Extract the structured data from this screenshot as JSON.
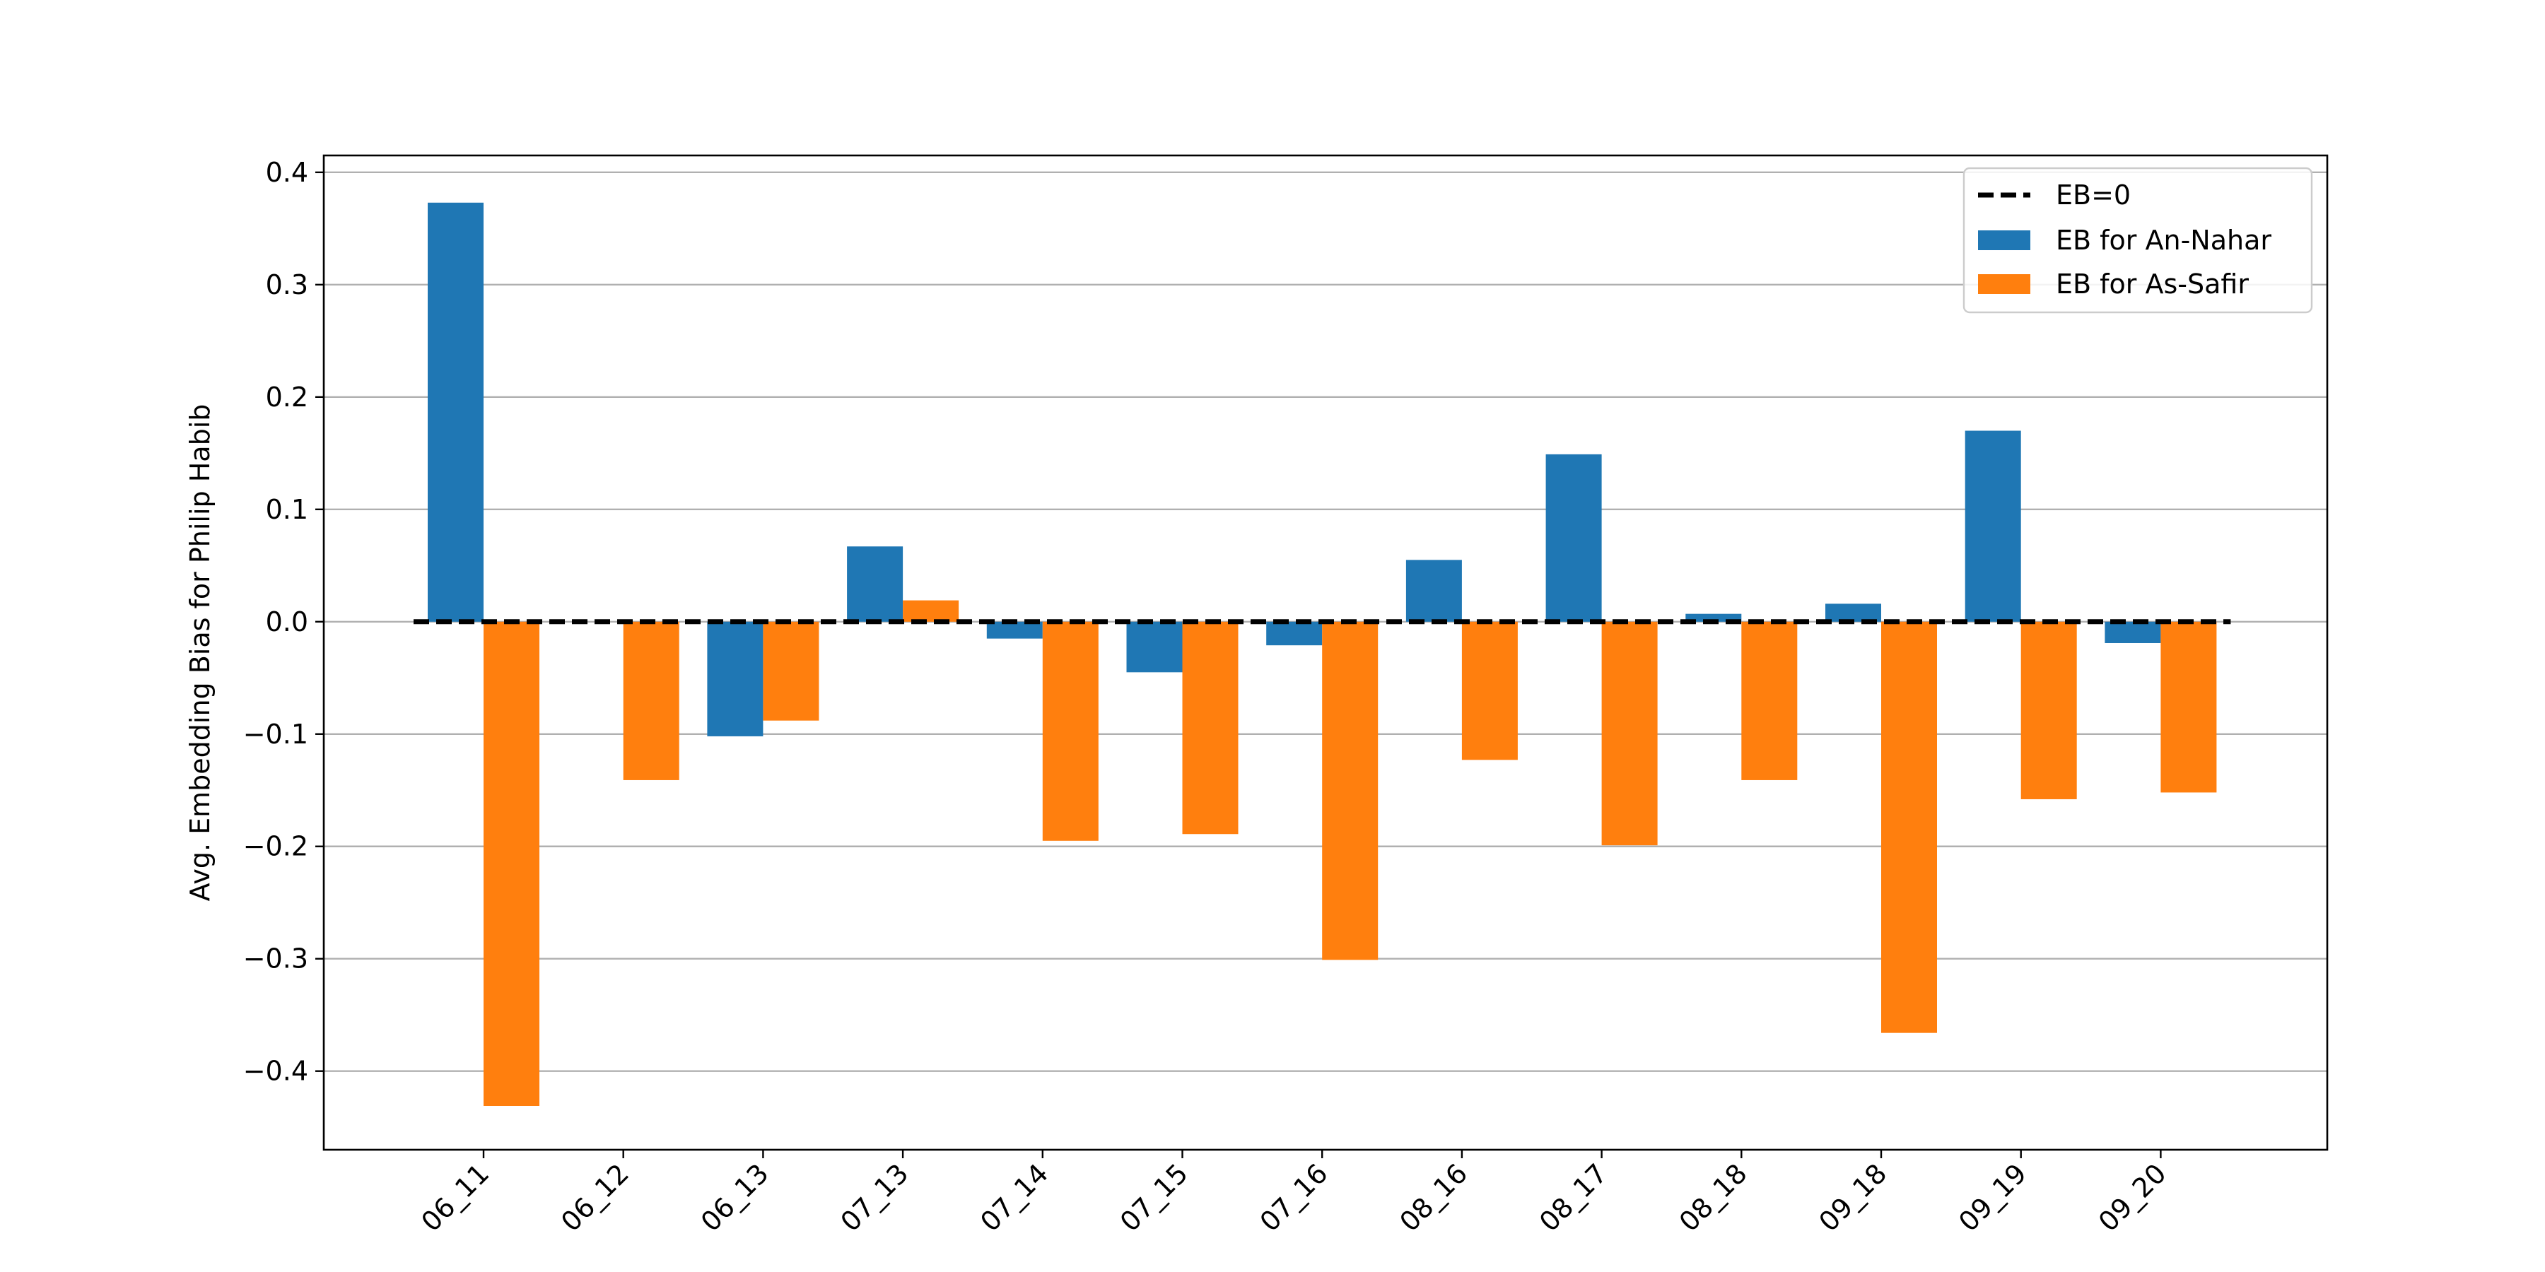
{
  "chart_data": {
    "type": "bar",
    "title": "",
    "xlabel": "",
    "ylabel": "Avg. Embedding Bias for Philip Habib",
    "categories": [
      "06_11",
      "06_12",
      "06_13",
      "07_13",
      "07_14",
      "07_15",
      "07_16",
      "08_16",
      "08_17",
      "08_18",
      "09_18",
      "09_19",
      "09_20"
    ],
    "series": [
      {
        "name": "EB for An-Nahar",
        "color": "#1f77b4",
        "values": [
          0.373,
          0.0,
          -0.102,
          0.067,
          -0.015,
          -0.045,
          -0.021,
          0.055,
          0.149,
          0.007,
          0.016,
          0.17,
          -0.019
        ]
      },
      {
        "name": "EB for As-Safir",
        "color": "#ff7f0e",
        "values": [
          -0.431,
          -0.141,
          -0.088,
          0.019,
          -0.195,
          -0.189,
          -0.301,
          -0.123,
          -0.199,
          -0.141,
          -0.366,
          -0.158,
          -0.152
        ]
      }
    ],
    "reference_line": {
      "name": "EB=0",
      "value": 0.0,
      "style": "dashed",
      "color": "#000000"
    },
    "ylim": [
      -0.47,
      0.415
    ],
    "yticks": [
      -0.4,
      -0.3,
      -0.2,
      -0.1,
      0.0,
      0.1,
      0.2,
      0.3,
      0.4
    ],
    "ytick_labels": [
      "−0.4",
      "−0.3",
      "−0.2",
      "−0.1",
      "0.0",
      "0.1",
      "0.2",
      "0.3",
      "0.4"
    ],
    "grid": "y",
    "legend_position": "top-right"
  }
}
